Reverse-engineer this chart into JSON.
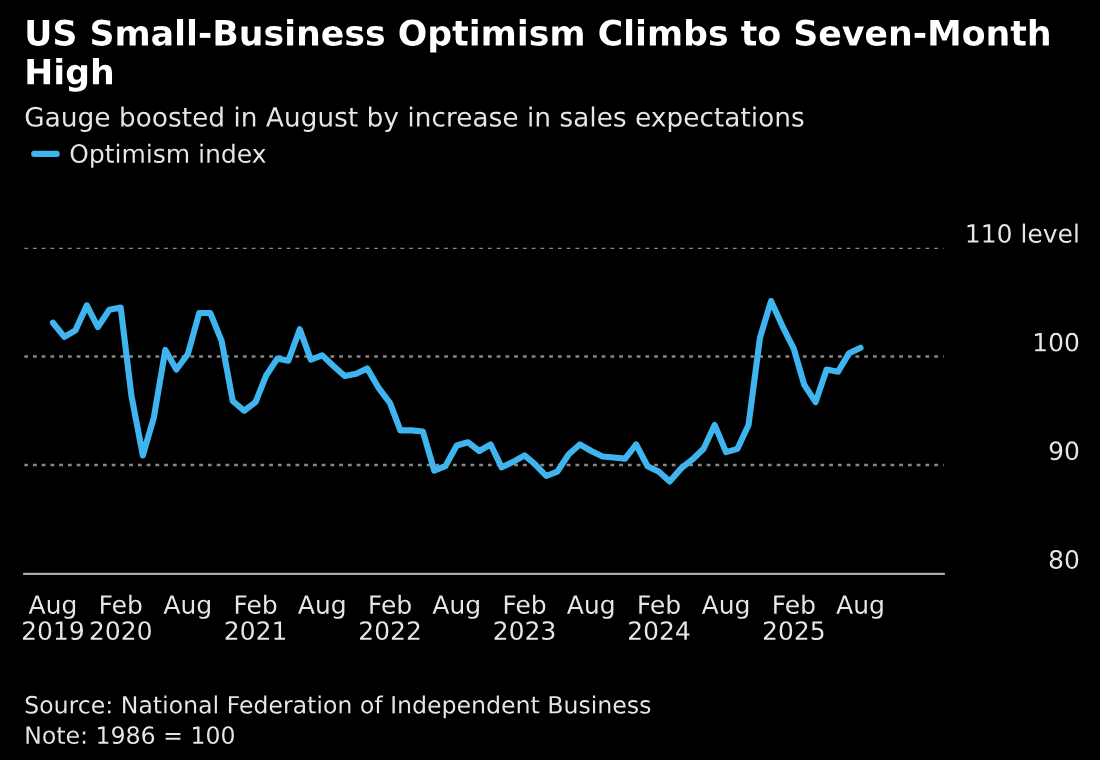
{
  "chart_data": {
    "type": "line",
    "title": "US Small-Business Optimism Climbs to Seven-Month High",
    "subtitle": "Gauge boosted in August by increase in sales expectations",
    "x": [
      "2019-08",
      "2019-09",
      "2019-10",
      "2019-11",
      "2019-12",
      "2020-01",
      "2020-02",
      "2020-03",
      "2020-04",
      "2020-05",
      "2020-06",
      "2020-07",
      "2020-08",
      "2020-09",
      "2020-10",
      "2020-11",
      "2020-12",
      "2021-01",
      "2021-02",
      "2021-03",
      "2021-04",
      "2021-05",
      "2021-06",
      "2021-07",
      "2021-08",
      "2021-09",
      "2021-10",
      "2021-11",
      "2021-12",
      "2022-01",
      "2022-02",
      "2022-03",
      "2022-04",
      "2022-05",
      "2022-06",
      "2022-07",
      "2022-08",
      "2022-09",
      "2022-10",
      "2022-11",
      "2022-12",
      "2023-01",
      "2023-02",
      "2023-03",
      "2023-04",
      "2023-05",
      "2023-06",
      "2023-07",
      "2023-08",
      "2023-09",
      "2023-10",
      "2023-11",
      "2023-12",
      "2024-01",
      "2024-02",
      "2024-03",
      "2024-04",
      "2024-05",
      "2024-06",
      "2024-07",
      "2024-08",
      "2024-09",
      "2024-10",
      "2024-11",
      "2024-12",
      "2025-01",
      "2025-02",
      "2025-03",
      "2025-04",
      "2025-05",
      "2025-06",
      "2025-07",
      "2025-08"
    ],
    "series": [
      {
        "name": "Optimism index",
        "color": "#3fb5f0",
        "values": [
          103.1,
          101.8,
          102.4,
          104.7,
          102.7,
          104.3,
          104.5,
          96.4,
          90.9,
          94.4,
          100.6,
          98.8,
          100.2,
          104.0,
          104.0,
          101.4,
          95.9,
          95.0,
          95.8,
          98.2,
          99.8,
          99.6,
          102.5,
          99.7,
          100.1,
          99.1,
          98.2,
          98.4,
          98.9,
          97.1,
          95.7,
          93.2,
          93.2,
          93.1,
          89.5,
          89.9,
          91.8,
          92.1,
          91.3,
          91.9,
          89.8,
          90.3,
          90.9,
          90.1,
          89.0,
          89.4,
          91.0,
          91.9,
          91.3,
          90.8,
          90.7,
          90.6,
          91.9,
          89.9,
          89.4,
          88.5,
          89.7,
          90.5,
          91.5,
          93.7,
          91.2,
          91.5,
          93.7,
          101.7,
          105.1,
          102.8,
          100.7,
          97.4,
          95.8,
          98.8,
          98.6,
          100.3,
          100.8
        ]
      }
    ],
    "xlim": [
      "2019-05-15",
      "2026-03-15"
    ],
    "xticks": [
      {
        "value": "2019-08",
        "label": "Aug\n2019"
      },
      {
        "value": "2020-02",
        "label": "Feb\n2020"
      },
      {
        "value": "2020-08",
        "label": "Aug"
      },
      {
        "value": "2021-02",
        "label": "Feb\n2021"
      },
      {
        "value": "2021-08",
        "label": "Aug"
      },
      {
        "value": "2022-02",
        "label": "Feb\n2022"
      },
      {
        "value": "2022-08",
        "label": "Aug"
      },
      {
        "value": "2023-02",
        "label": "Feb\n2023"
      },
      {
        "value": "2023-08",
        "label": "Aug"
      },
      {
        "value": "2024-02",
        "label": "Feb\n2024"
      },
      {
        "value": "2024-08",
        "label": "Aug"
      },
      {
        "value": "2025-02",
        "label": "Feb\n2025"
      },
      {
        "value": "2025-08",
        "label": "Aug"
      }
    ],
    "ylim": [
      80,
      110
    ],
    "yticks": [
      80,
      90,
      100,
      {
        "value": 110,
        "label": "110 level"
      }
    ],
    "grid": "y",
    "legend": "top left",
    "annotations": [
      "Source: National Federation of Independent Business",
      "Note: 1986 = 100"
    ]
  }
}
